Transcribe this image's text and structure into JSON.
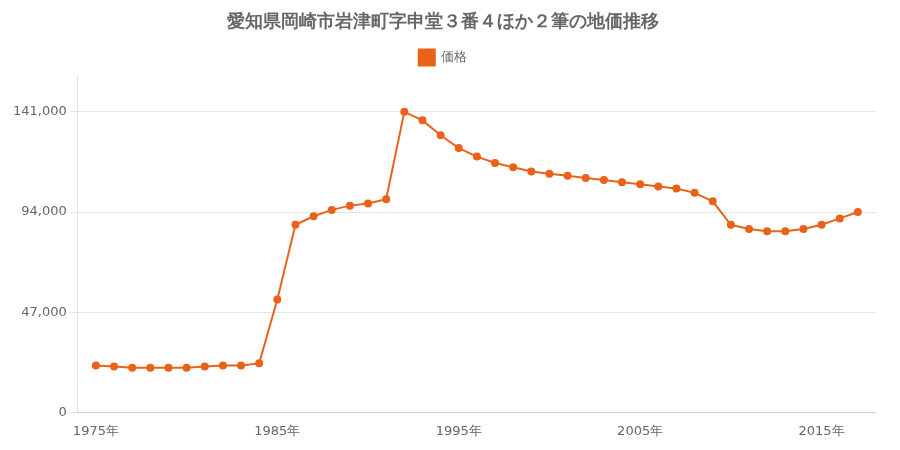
{
  "chart_data": {
    "type": "line",
    "title": "愛知県岡崎市岩津町字申堂３番４ほか２筆の地価推移",
    "x": [
      1975,
      1976,
      1977,
      1978,
      1979,
      1980,
      1981,
      1982,
      1983,
      1984,
      1985,
      1986,
      1987,
      1988,
      1989,
      1990,
      1991,
      1992,
      1993,
      1994,
      1995,
      1996,
      1997,
      1998,
      1999,
      2000,
      2001,
      2002,
      2003,
      2004,
      2005,
      2006,
      2007,
      2008,
      2009,
      2010,
      2011,
      2012,
      2013,
      2014,
      2015,
      2016,
      2017
    ],
    "series": [
      {
        "name": "価格",
        "color": "#E8621A",
        "marker": "circle",
        "values": [
          22000,
          21500,
          21000,
          21000,
          21000,
          21000,
          21500,
          22000,
          22000,
          23000,
          53000,
          88000,
          92000,
          95000,
          97000,
          98000,
          100000,
          141000,
          137000,
          130000,
          124000,
          120000,
          117000,
          115000,
          113000,
          112000,
          111000,
          110000,
          109000,
          108000,
          107000,
          106000,
          105000,
          103000,
          99000,
          88000,
          86000,
          85000,
          85000,
          86000,
          88000,
          91000,
          94000
        ]
      }
    ],
    "xlim": [
      1974,
      2018
    ],
    "xticks": [
      {
        "value": 1975,
        "label": "1975年"
      },
      {
        "value": 1985,
        "label": "1985年"
      },
      {
        "value": 1995,
        "label": "1995年"
      },
      {
        "value": 2005,
        "label": "2005年"
      },
      {
        "value": 2015,
        "label": "2015年"
      }
    ],
    "ylim": [
      0,
      158000
    ],
    "yticks": [
      0,
      {
        "value": 47000,
        "label": "47,000"
      },
      {
        "value": 94000,
        "label": "94,000"
      },
      {
        "value": 141000,
        "label": "141,000"
      }
    ],
    "grid": "y",
    "legend": "top"
  }
}
